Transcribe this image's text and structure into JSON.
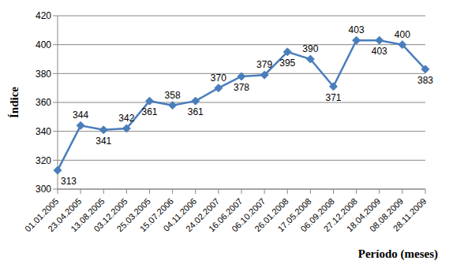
{
  "chart_data": {
    "type": "line",
    "x_label": "Período (meses)",
    "y_label": "Índice",
    "categories": [
      "01.01.2005",
      "23.04.2005",
      "13.08.2005",
      "03.12.2005",
      "25.03.2005",
      "15.07.2006",
      "04.11.2006",
      "24.02.2007",
      "16.06.2007",
      "06.10.2007",
      "26.01.2008",
      "17.05.2008",
      "06.09.2008",
      "27.12.2008",
      "18.04.2009",
      "08.08.2009",
      "28.11.2009"
    ],
    "values": [
      313,
      344,
      341,
      342,
      361,
      358,
      361,
      370,
      378,
      379,
      395,
      390,
      371,
      403,
      403,
      400,
      383
    ],
    "color": "#4a7ebb",
    "marker": "diamond",
    "ylim": [
      300,
      420
    ],
    "yticks": [
      300,
      320,
      340,
      360,
      380,
      400,
      420
    ],
    "grid": true,
    "data_labels": true
  }
}
